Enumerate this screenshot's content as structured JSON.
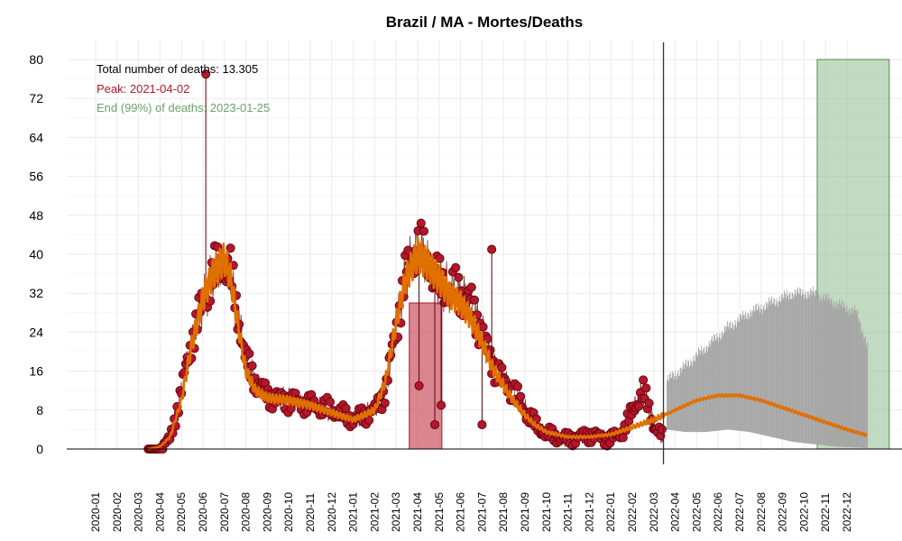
{
  "colors": {
    "background": "#ffffff",
    "grid": "#ebebeb",
    "points_fill": "#b2182b",
    "points_stroke": "#67000d",
    "fit_line": "#e07000",
    "peak_band": "#cd5c6a",
    "end_band": "#8fbc8f",
    "prediction_band": "#a6a6a6",
    "total_text": "#000000",
    "peak_text": "#b2182b",
    "end_text": "#6aa46a"
  },
  "chart_data": {
    "type": "scatter",
    "title": "Brazil / MA - Mortes/Deaths",
    "xlabel": "",
    "ylabel": "",
    "ylim": [
      0,
      80
    ],
    "y_ticks": [
      0,
      8,
      16,
      24,
      32,
      40,
      48,
      56,
      64,
      72,
      80
    ],
    "x_ticks": [
      "2020-01",
      "2020-02",
      "2020-03",
      "2020-04",
      "2020-05",
      "2020-06",
      "2020-07",
      "2020-08",
      "2020-09",
      "2020-10",
      "2020-11",
      "2020-12",
      "2021-01",
      "2021-02",
      "2021-03",
      "2021-04",
      "2021-05",
      "2021-06",
      "2021-07",
      "2021-08",
      "2021-09",
      "2021-10",
      "2021-11",
      "2021-12",
      "2022-01",
      "2022-02",
      "2022-03",
      "2022-04",
      "2022-05",
      "2022-06",
      "2022-07",
      "2022-08",
      "2022-09",
      "2022-10",
      "2022-11",
      "2022-12"
    ],
    "grid": true,
    "annotations": {
      "total": "Total number of deaths: 13.305",
      "peak": "Peak: 2021-04-02",
      "end": "End (99%) of deaths: 2023-01-25"
    },
    "vertical_line_date": "2022-03-15",
    "peak_band": {
      "x_start": "2021-03-20",
      "x_end": "2021-05-05",
      "y": 30
    },
    "end_band": {
      "x_start": "2022-10-20",
      "x_end": "2023-01-31",
      "y": 80
    },
    "observed_weekly_avg": [
      [
        "2020-03-15",
        0
      ],
      [
        "2020-04-01",
        0
      ],
      [
        "2020-04-15",
        2
      ],
      [
        "2020-05-01",
        12
      ],
      [
        "2020-05-15",
        22
      ],
      [
        "2020-06-01",
        30
      ],
      [
        "2020-06-15",
        36
      ],
      [
        "2020-07-01",
        38
      ],
      [
        "2020-07-10",
        36
      ],
      [
        "2020-07-20",
        28
      ],
      [
        "2020-08-01",
        18
      ],
      [
        "2020-08-15",
        14
      ],
      [
        "2020-09-01",
        11
      ],
      [
        "2020-10-01",
        10
      ],
      [
        "2020-11-01",
        9
      ],
      [
        "2020-12-01",
        8
      ],
      [
        "2021-01-01",
        6
      ],
      [
        "2021-02-01",
        8
      ],
      [
        "2021-02-15",
        12
      ],
      [
        "2021-03-01",
        25
      ],
      [
        "2021-03-15",
        36
      ],
      [
        "2021-04-01",
        42
      ],
      [
        "2021-04-15",
        38
      ],
      [
        "2021-05-01",
        34
      ],
      [
        "2021-05-15",
        33
      ],
      [
        "2021-06-01",
        32
      ],
      [
        "2021-06-15",
        30
      ],
      [
        "2021-07-01",
        24
      ],
      [
        "2021-07-15",
        18
      ],
      [
        "2021-08-01",
        14
      ],
      [
        "2021-08-15",
        12
      ],
      [
        "2021-09-01",
        8
      ],
      [
        "2021-09-15",
        5
      ],
      [
        "2021-10-01",
        3
      ],
      [
        "2021-11-01",
        2
      ],
      [
        "2021-12-01",
        3
      ],
      [
        "2022-01-01",
        2
      ],
      [
        "2022-01-20",
        4
      ],
      [
        "2022-02-05",
        9
      ],
      [
        "2022-02-15",
        12
      ],
      [
        "2022-03-01",
        5
      ],
      [
        "2022-03-15",
        2
      ]
    ],
    "fit_curve": [
      [
        "2020-03-15",
        0
      ],
      [
        "2020-04-01",
        0.5
      ],
      [
        "2020-04-15",
        2.5
      ],
      [
        "2020-05-01",
        10
      ],
      [
        "2020-05-15",
        21
      ],
      [
        "2020-06-01",
        31
      ],
      [
        "2020-06-15",
        36
      ],
      [
        "2020-07-01",
        39
      ],
      [
        "2020-07-10",
        35
      ],
      [
        "2020-07-20",
        26
      ],
      [
        "2020-08-01",
        16
      ],
      [
        "2020-08-15",
        12
      ],
      [
        "2020-09-01",
        10.5
      ],
      [
        "2020-10-01",
        10
      ],
      [
        "2020-11-01",
        9
      ],
      [
        "2020-12-01",
        7.5
      ],
      [
        "2021-01-01",
        6
      ],
      [
        "2021-02-01",
        8
      ],
      [
        "2021-02-15",
        14
      ],
      [
        "2021-03-01",
        26
      ],
      [
        "2021-03-15",
        35
      ],
      [
        "2021-04-01",
        40
      ],
      [
        "2021-04-15",
        38
      ],
      [
        "2021-05-01",
        35
      ],
      [
        "2021-05-15",
        32
      ],
      [
        "2021-06-01",
        30
      ],
      [
        "2021-06-15",
        27
      ],
      [
        "2021-07-01",
        22
      ],
      [
        "2021-07-15",
        17
      ],
      [
        "2021-08-01",
        13
      ],
      [
        "2021-08-15",
        10
      ],
      [
        "2021-09-01",
        7
      ],
      [
        "2021-09-15",
        5
      ],
      [
        "2021-10-01",
        3.5
      ],
      [
        "2021-11-01",
        2.5
      ],
      [
        "2021-12-01",
        2.5
      ],
      [
        "2022-01-01",
        3
      ],
      [
        "2022-02-01",
        4.5
      ],
      [
        "2022-03-01",
        6
      ],
      [
        "2022-04-01",
        8
      ],
      [
        "2022-05-01",
        10
      ],
      [
        "2022-06-01",
        11
      ],
      [
        "2022-07-01",
        11
      ],
      [
        "2022-08-01",
        10
      ],
      [
        "2022-09-01",
        8.5
      ],
      [
        "2022-10-01",
        7
      ],
      [
        "2022-11-01",
        5.5
      ],
      [
        "2022-12-01",
        4
      ],
      [
        "2022-12-31",
        2.8
      ]
    ],
    "prediction_band": [
      [
        "2022-03-20",
        4,
        14
      ],
      [
        "2022-04-15",
        3.5,
        17
      ],
      [
        "2022-05-15",
        3.5,
        21
      ],
      [
        "2022-06-15",
        4,
        25
      ],
      [
        "2022-07-15",
        3.5,
        28
      ],
      [
        "2022-08-15",
        2.5,
        30
      ],
      [
        "2022-09-15",
        1.5,
        32
      ],
      [
        "2022-10-15",
        1,
        32
      ],
      [
        "2022-11-15",
        0.5,
        30
      ],
      [
        "2022-12-15",
        0.3,
        28
      ],
      [
        "2022-12-31",
        0.2,
        21
      ]
    ],
    "outliers": [
      [
        "2020-06-05",
        77
      ],
      [
        "2021-04-03",
        13
      ],
      [
        "2021-04-25",
        5
      ],
      [
        "2021-05-04",
        9
      ],
      [
        "2021-07-15",
        41
      ],
      [
        "2021-07-01",
        5
      ]
    ]
  }
}
